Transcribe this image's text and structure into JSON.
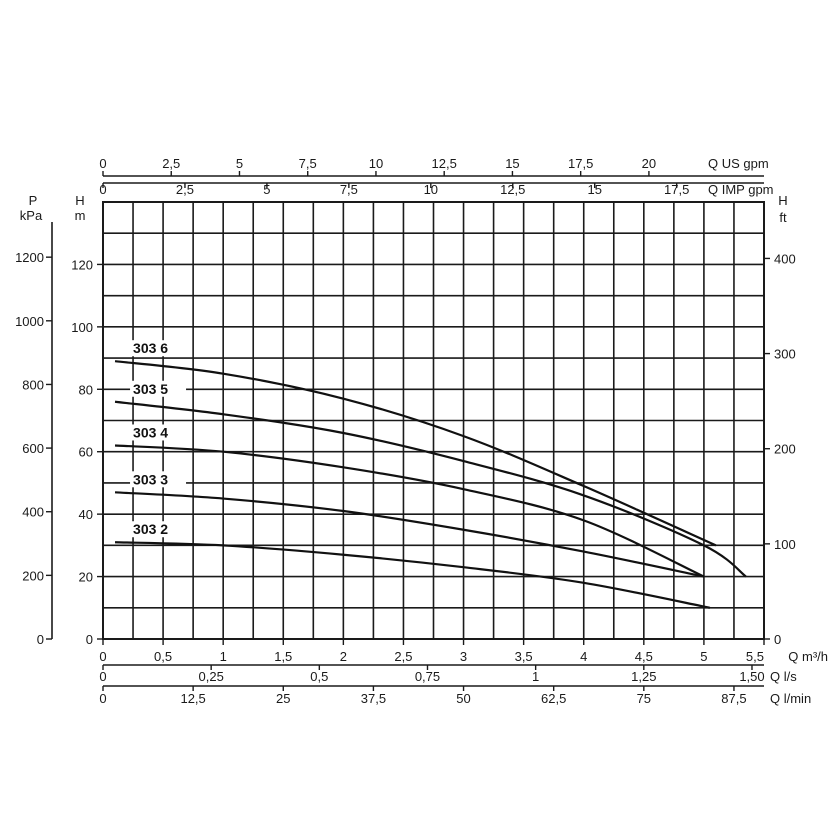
{
  "chart_data": {
    "type": "line",
    "axes": {
      "flow_m3h": {
        "label": "Q m³/h",
        "min": 0,
        "max": 5.5,
        "ticks": [
          "0",
          "0,5",
          "1",
          "1,5",
          "2",
          "2,5",
          "3",
          "3,5",
          "4",
          "4,5",
          "5",
          "5,5"
        ]
      },
      "flow_ls": {
        "label": "Q l/s",
        "ticks": [
          {
            "v": 0,
            "t": "0"
          },
          {
            "v": 0.25,
            "t": "0,25"
          },
          {
            "v": 0.5,
            "t": "0,5"
          },
          {
            "v": 0.75,
            "t": "0,75"
          },
          {
            "v": 1,
            "t": "1"
          },
          {
            "v": 1.25,
            "t": "1,25"
          },
          {
            "v": 1.5,
            "t": "1,50"
          }
        ]
      },
      "flow_lmin": {
        "label": "Q l/min",
        "ticks": [
          {
            "v": 0,
            "t": "0"
          },
          {
            "v": 12.5,
            "t": "12,5"
          },
          {
            "v": 25,
            "t": "25"
          },
          {
            "v": 37.5,
            "t": "37,5"
          },
          {
            "v": 50,
            "t": "50"
          },
          {
            "v": 62.5,
            "t": "62,5"
          },
          {
            "v": 75,
            "t": "75"
          },
          {
            "v": 87.5,
            "t": "87,5"
          }
        ]
      },
      "flow_usgpm": {
        "label": "Q US gpm",
        "ticks": [
          {
            "v": 0,
            "t": "0"
          },
          {
            "v": 2.5,
            "t": "2,5"
          },
          {
            "v": 5,
            "t": "5"
          },
          {
            "v": 7.5,
            "t": "7,5"
          },
          {
            "v": 10,
            "t": "10"
          },
          {
            "v": 12.5,
            "t": "12,5"
          },
          {
            "v": 15,
            "t": "15"
          },
          {
            "v": 17.5,
            "t": "17,5"
          },
          {
            "v": 20,
            "t": "20"
          }
        ]
      },
      "flow_impgpm": {
        "label": "Q IMP gpm",
        "ticks": [
          {
            "v": 0,
            "t": "0"
          },
          {
            "v": 2.5,
            "t": "2,5"
          },
          {
            "v": 5,
            "t": "5"
          },
          {
            "v": 7.5,
            "t": "7,5"
          },
          {
            "v": 10,
            "t": "10"
          },
          {
            "v": 12.5,
            "t": "12,5"
          },
          {
            "v": 15,
            "t": "15"
          },
          {
            "v": 17.5,
            "t": "17,5"
          }
        ]
      },
      "head_m": {
        "label_top": "H",
        "label_unit": "m",
        "min": 0,
        "max": 140,
        "ticks": [
          0,
          20,
          40,
          60,
          80,
          100,
          120
        ]
      },
      "pressure_kpa": {
        "label_top": "P",
        "label_unit": "kPa",
        "ticks": [
          0,
          200,
          400,
          600,
          800,
          1000,
          1200
        ]
      },
      "head_ft": {
        "label_top": "H",
        "label_unit": "ft",
        "ticks": [
          0,
          100,
          200,
          300,
          400
        ]
      }
    },
    "grid": true,
    "series": [
      {
        "name": "303 6",
        "x": [
          0.1,
          1.0,
          2.0,
          3.0,
          4.0,
          5.1
        ],
        "y": [
          89,
          85,
          77,
          65,
          49,
          30
        ]
      },
      {
        "name": "303 5",
        "x": [
          0.1,
          1.0,
          2.0,
          3.0,
          4.0,
          5.0,
          5.35
        ],
        "y": [
          76,
          72,
          66,
          57,
          46,
          30,
          20
        ]
      },
      {
        "name": "303 4",
        "x": [
          0.1,
          1.0,
          2.0,
          3.0,
          4.0,
          5.0
        ],
        "y": [
          62,
          60,
          55,
          48,
          38,
          20
        ]
      },
      {
        "name": "303 3",
        "x": [
          0.1,
          1.0,
          2.0,
          3.0,
          4.0,
          5.0
        ],
        "y": [
          47,
          45,
          41,
          35,
          28,
          20
        ]
      },
      {
        "name": "303 2",
        "x": [
          0.1,
          1.0,
          2.0,
          3.0,
          4.0,
          5.05
        ],
        "y": [
          31,
          30,
          27,
          23,
          18,
          10
        ]
      }
    ]
  }
}
